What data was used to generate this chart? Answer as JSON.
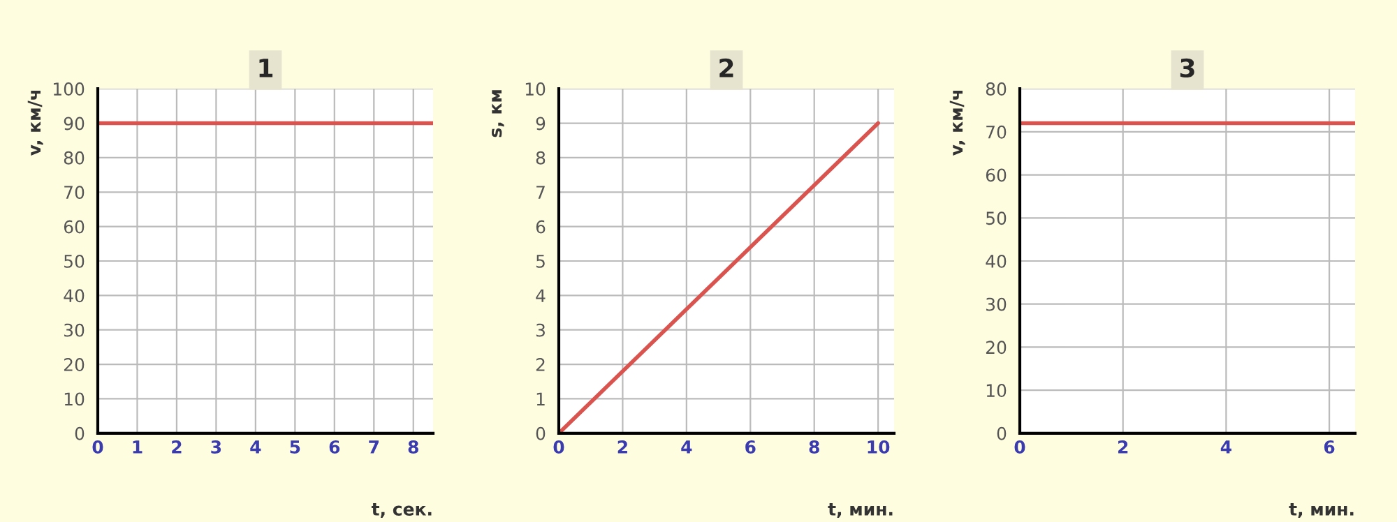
{
  "chart_data": [
    {
      "type": "line",
      "title": "1",
      "xlabel": "t, сек.",
      "ylabel": "v, км/ч",
      "x": [
        0,
        8.5
      ],
      "series": [
        {
          "color": "#d9534f",
          "values": [
            90,
            90
          ]
        }
      ],
      "xlim": [
        0,
        8.5
      ],
      "xticks": [
        0,
        1,
        2,
        3,
        4,
        5,
        6,
        7,
        8
      ],
      "ylim": [
        0,
        100
      ],
      "yticks": [
        0,
        10,
        20,
        30,
        40,
        50,
        60,
        70,
        80,
        90,
        100
      ],
      "grid": true,
      "legend": false
    },
    {
      "type": "line",
      "title": "2",
      "xlabel": "t, мин.",
      "ylabel": "s, км",
      "x": [
        0,
        10
      ],
      "series": [
        {
          "color": "#d9534f",
          "values": [
            0,
            9
          ]
        }
      ],
      "xlim": [
        0,
        10.5
      ],
      "xticks": [
        0,
        2,
        4,
        6,
        8,
        10
      ],
      "ylim": [
        0,
        10
      ],
      "yticks": [
        0,
        1,
        2,
        3,
        4,
        5,
        6,
        7,
        8,
        9,
        10
      ],
      "grid": true,
      "legend": false
    },
    {
      "type": "line",
      "title": "3",
      "xlabel": "t, мин.",
      "ylabel": "v, км/ч",
      "x": [
        0,
        6.5
      ],
      "series": [
        {
          "color": "#d9534f",
          "values": [
            72,
            72
          ]
        }
      ],
      "xlim": [
        0,
        6.5
      ],
      "xticks": [
        0,
        2,
        4,
        6
      ],
      "ylim": [
        0,
        80
      ],
      "yticks": [
        0,
        10,
        20,
        30,
        40,
        50,
        60,
        70,
        80
      ],
      "grid": true,
      "legend": false
    }
  ]
}
